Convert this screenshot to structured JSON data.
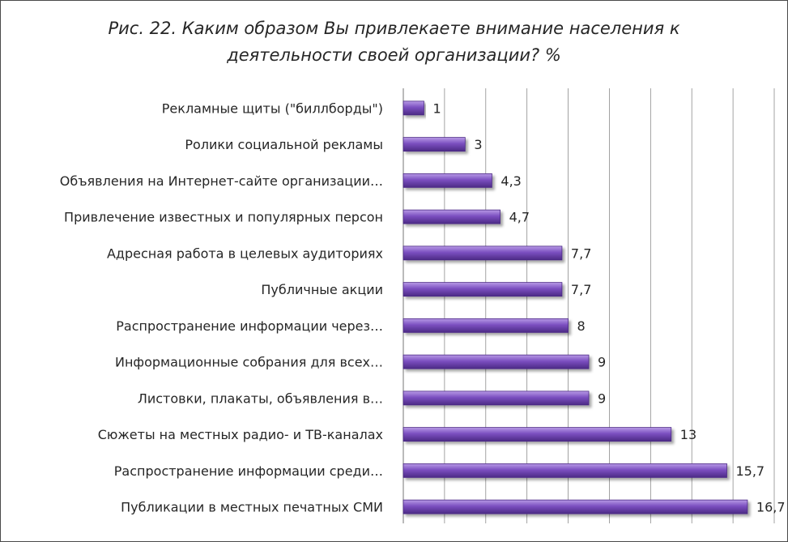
{
  "chart_data": {
    "type": "bar",
    "orientation": "horizontal",
    "title_lines": [
      "Рис. 22. Каким образом Вы привлекаете внимание населения к",
      "деятельности своей организации? %"
    ],
    "categories": [
      "Рекламные щиты (\"биллборды\")",
      "Ролики социальной рекламы",
      "Объявления на Интернет-сайте организации…",
      "Привлечение известных и популярных персон",
      "Адресная работа в целевых аудиториях",
      "Публичные акции",
      "Распространение информации через…",
      "Информационные собрания для всех…",
      "Листовки, плакаты, объявления в…",
      "Сюжеты на местных радио- и ТВ-каналах",
      "Распространение информации среди…",
      "Публикации в местных печатных СМИ"
    ],
    "values": [
      1,
      3,
      4.3,
      4.7,
      7.7,
      7.7,
      8,
      9,
      9,
      13,
      15.7,
      16.7
    ],
    "value_labels": [
      "1",
      "3",
      "4,3",
      "4,7",
      "7,7",
      "7,7",
      "8",
      "9",
      "9",
      "13",
      "15,7",
      "16,7"
    ],
    "xlim": [
      0,
      18
    ],
    "grid": "vertical",
    "legend": "none",
    "bar_color": "#7b4fc0",
    "bar_color_dark": "#4c2a85",
    "bar_color_light": "#b89ae6",
    "grid_color": "#8c8c8c"
  }
}
